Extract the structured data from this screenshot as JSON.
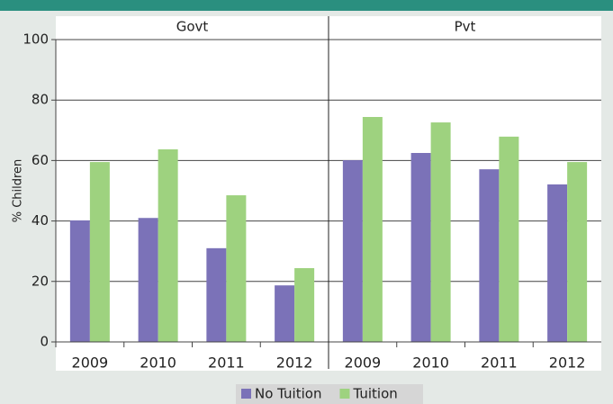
{
  "chart_data": {
    "type": "bar",
    "ylabel": "% Children",
    "ylim": [
      0,
      100
    ],
    "yticks": [
      0,
      20,
      40,
      60,
      80,
      100
    ],
    "grid": true,
    "series": [
      {
        "name": "No Tuition",
        "color": "#7b72b8"
      },
      {
        "name": "Tuition",
        "color": "#9ed27f"
      }
    ],
    "panels": [
      {
        "title": "Govt",
        "categories": [
          "2009",
          "2010",
          "2011",
          "2012"
        ],
        "series": [
          {
            "values": [
              40.2,
              41,
              31,
              18.7
            ]
          },
          {
            "values": [
              59.5,
              63.7,
              48.5,
              24.4
            ]
          }
        ]
      },
      {
        "title": "Pvt",
        "categories": [
          "2009",
          "2010",
          "2011",
          "2012"
        ],
        "series": [
          {
            "values": [
              60.1,
              62.5,
              57.1,
              52.1
            ]
          },
          {
            "values": [
              74.4,
              72.6,
              67.9,
              59.5
            ]
          }
        ]
      }
    ]
  }
}
